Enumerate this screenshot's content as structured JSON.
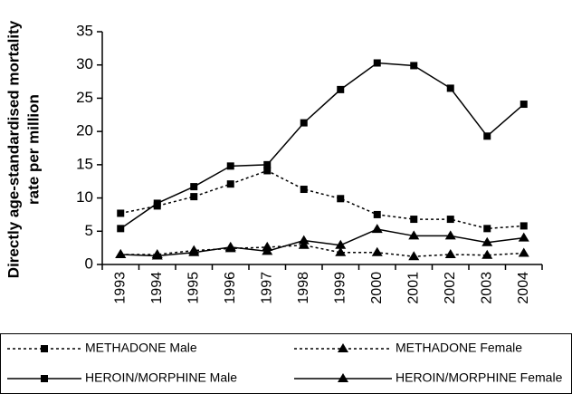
{
  "chart_data": {
    "type": "line",
    "ylabel": [
      "Directly age-standardised mortality",
      "rate per million"
    ],
    "categories": [
      "1993",
      "1994",
      "1995",
      "1996",
      "1997",
      "1998",
      "1999",
      "2000",
      "2001",
      "2002",
      "2003",
      "2004"
    ],
    "series": [
      {
        "name": "METHADONE Male",
        "color": "#000000",
        "line_style": "dotted",
        "marker": "square",
        "values": [
          7.7,
          8.8,
          10.2,
          12.1,
          14.1,
          11.3,
          9.9,
          7.5,
          6.8,
          6.8,
          5.4,
          5.8
        ]
      },
      {
        "name": "METHADONE Female",
        "color": "#000000",
        "line_style": "dotted",
        "marker": "triangle",
        "values": [
          1.5,
          1.5,
          2.1,
          2.4,
          2.6,
          2.9,
          1.8,
          1.8,
          1.2,
          1.5,
          1.4,
          1.7
        ]
      },
      {
        "name": "HEROIN/MORPHINE Male",
        "color": "#000000",
        "line_style": "solid",
        "marker": "square",
        "values": [
          5.4,
          9.2,
          11.7,
          14.8,
          15.0,
          21.3,
          26.3,
          30.3,
          29.9,
          26.5,
          19.3,
          24.1
        ]
      },
      {
        "name": "HEROIN/MORPHINE Female",
        "color": "#000000",
        "line_style": "solid",
        "marker": "triangle",
        "values": [
          1.5,
          1.3,
          1.8,
          2.6,
          2.0,
          3.6,
          2.9,
          5.3,
          4.3,
          4.3,
          3.3,
          4.0
        ]
      }
    ],
    "ylim": [
      0,
      35
    ],
    "yticks": [
      0,
      5,
      10,
      15,
      20,
      25,
      30,
      35
    ],
    "grid": false,
    "legend": "bottom"
  }
}
